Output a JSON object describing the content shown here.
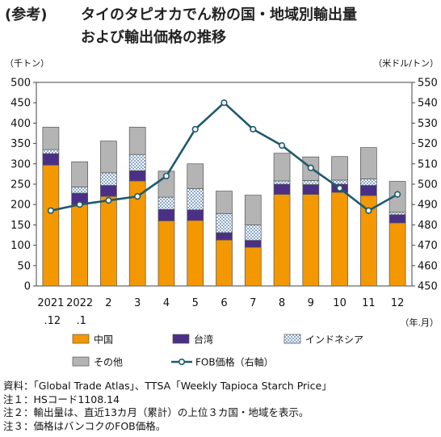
{
  "title": {
    "prefix": "(参考)",
    "line1": "タイのタピオカでん粉の国・地域別輸出量",
    "line2": "および輸出価格の推移"
  },
  "chart_data": {
    "type": "bar",
    "stacked": true,
    "left_axis_unit": "（千トン）",
    "right_axis_unit": "（米ドル/トン）",
    "x_unit": "（年.月）",
    "ylim": [
      0,
      500
    ],
    "yticks": [
      0,
      50,
      100,
      150,
      200,
      250,
      300,
      350,
      400,
      450,
      500
    ],
    "y2lim": [
      450,
      550
    ],
    "y2ticks": [
      450,
      460,
      470,
      480,
      490,
      500,
      510,
      520,
      530,
      540,
      550
    ],
    "categories": [
      {
        "top": "2021",
        "bottom": ".12"
      },
      {
        "top": "2022",
        "bottom": ".1"
      },
      {
        "top": "2",
        "bottom": ""
      },
      {
        "top": "3",
        "bottom": ""
      },
      {
        "top": "4",
        "bottom": ""
      },
      {
        "top": "5",
        "bottom": ""
      },
      {
        "top": "6",
        "bottom": ""
      },
      {
        "top": "7",
        "bottom": ""
      },
      {
        "top": "8",
        "bottom": ""
      },
      {
        "top": "9",
        "bottom": ""
      },
      {
        "top": "10",
        "bottom": ""
      },
      {
        "top": "11",
        "bottom": ""
      },
      {
        "top": "12",
        "bottom": ""
      }
    ],
    "series": [
      {
        "name": "中国",
        "color": "#f39800",
        "pattern": "solid",
        "values": [
          297,
          200,
          220,
          258,
          160,
          161,
          113,
          95,
          225,
          225,
          230,
          222,
          155
        ]
      },
      {
        "name": "台湾",
        "color": "#4b2f86",
        "pattern": "solid",
        "values": [
          28,
          28,
          27,
          25,
          28,
          26,
          18,
          17,
          25,
          24,
          20,
          25,
          20
        ]
      },
      {
        "name": "インドネシア",
        "color": "#9fb8d8",
        "pattern": "checker",
        "values": [
          10,
          15,
          31,
          40,
          30,
          52,
          47,
          38,
          8,
          10,
          10,
          16,
          6
        ]
      },
      {
        "name": "その他",
        "color": "#b4b4b4",
        "pattern": "solid",
        "values": [
          55,
          62,
          78,
          67,
          64,
          61,
          55,
          73,
          68,
          58,
          58,
          77,
          76
        ]
      }
    ],
    "line_series": {
      "name": "FOB価格（右軸）",
      "axis": "right",
      "color": "#1e5a6e",
      "values": [
        487,
        490,
        492,
        494,
        504,
        527,
        540,
        527,
        519,
        508,
        498,
        487,
        495
      ]
    },
    "legend": {
      "position": "bottom",
      "items": [
        {
          "label": "中国",
          "kind": "bar",
          "series": 0
        },
        {
          "label": "台湾",
          "kind": "bar",
          "series": 1
        },
        {
          "label": "インドネシア",
          "kind": "bar",
          "series": 2
        },
        {
          "label": "その他",
          "kind": "bar",
          "series": 3
        },
        {
          "label": "FOB価格（右軸）",
          "kind": "line"
        }
      ]
    }
  },
  "notes": [
    "資料：「Global Trade Atlas」、TTSA「Weekly Tapioca Starch Price」",
    "注１：HSコード1108.14",
    "注２：輸出量は、直近13カ月（累計）の上位３カ国・地域を表示。",
    "注３：価格はバンコクのFOB価格。"
  ]
}
